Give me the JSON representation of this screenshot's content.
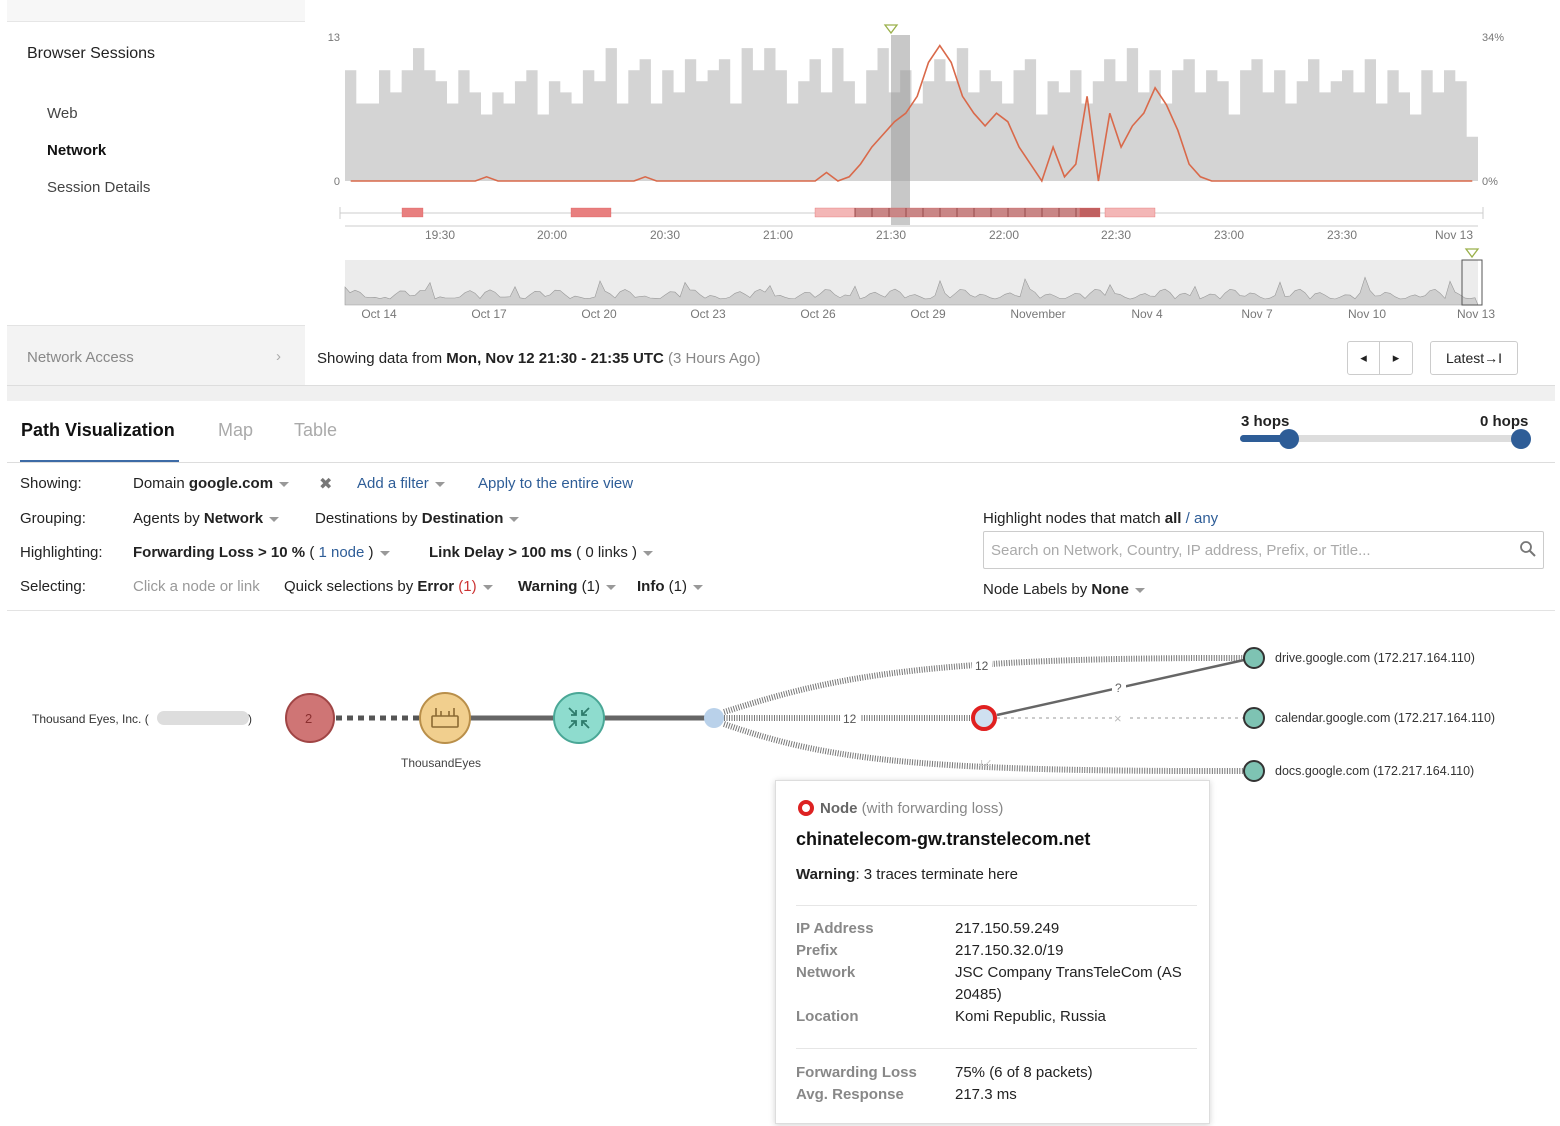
{
  "sidebar": {
    "section_title": "Browser Sessions",
    "items": [
      {
        "label": "Web",
        "active": false
      },
      {
        "label": "Network",
        "active": true
      },
      {
        "label": "Session Details",
        "active": false
      }
    ],
    "network_access": "Network Access"
  },
  "timeline": {
    "y_left": {
      "max": "13",
      "min": "0"
    },
    "y_right": {
      "max": "34%",
      "min": "0%"
    },
    "x_ticks": [
      "19:30",
      "20:00",
      "20:30",
      "21:00",
      "21:30",
      "22:00",
      "22:30",
      "23:00",
      "23:30",
      "Nov 13"
    ],
    "overview_ticks": [
      "Oct 14",
      "Oct 17",
      "Oct 20",
      "Oct 23",
      "Oct 26",
      "Oct 29",
      "November",
      "Nov 4",
      "Nov 7",
      "Nov 10",
      "Nov 13"
    ],
    "colors": {
      "sessions": "#d4d4d4",
      "loss": "#d9694a",
      "selection": "#9a9a9a"
    },
    "chart_data": {
      "type": "bar",
      "series": [
        {
          "name": "",
          "values": [
            10,
            7,
            7,
            10,
            8,
            10,
            12,
            10,
            9,
            7,
            10,
            8,
            6,
            8,
            7,
            9,
            10,
            6,
            9,
            8,
            7,
            10,
            9,
            12,
            7,
            10,
            11,
            7,
            10,
            8,
            11,
            9,
            10,
            11,
            7,
            12,
            10,
            12,
            10,
            7,
            9,
            11,
            8,
            12,
            9,
            7,
            10,
            12,
            8,
            10,
            7,
            9,
            11,
            9,
            12,
            8,
            10,
            9,
            7,
            10,
            11,
            6,
            9,
            8,
            10,
            7,
            9,
            11,
            9,
            12,
            8,
            10,
            7,
            10,
            11,
            8,
            10,
            9,
            6,
            10,
            11,
            8,
            10,
            7,
            9,
            11,
            8,
            9,
            10,
            8,
            11,
            7,
            10,
            8,
            6,
            10,
            8,
            10,
            9,
            4
          ]
        },
        {
          "name": "",
          "values": [
            0,
            0,
            0,
            0,
            0,
            0,
            0,
            0,
            0,
            0,
            0,
            0,
            1,
            0,
            0,
            0,
            0,
            0,
            0,
            0,
            0,
            0,
            0,
            0,
            0,
            0,
            1,
            0,
            0,
            0,
            0,
            0,
            0,
            0,
            0,
            0,
            0,
            0,
            0,
            0,
            0,
            0,
            2,
            0,
            1,
            4,
            8,
            11,
            14,
            16,
            20,
            28,
            32,
            28,
            20,
            16,
            13,
            16,
            14,
            8,
            4,
            0,
            8,
            1,
            4,
            20,
            0,
            16,
            8,
            13,
            16,
            22,
            18,
            12,
            4,
            1,
            0,
            0,
            0,
            0,
            0,
            0,
            0,
            0,
            0,
            0,
            0,
            0,
            0,
            0,
            0,
            0,
            0,
            0,
            0,
            0,
            0,
            0,
            0,
            0
          ]
        }
      ],
      "ylim": [
        0,
        13
      ],
      "y2lim": [
        0,
        34
      ]
    }
  },
  "showing": {
    "prefix": "Showing data from ",
    "range": "Mon, Nov 12 21:30 - 21:35 UTC",
    "ago": "(3 Hours Ago)"
  },
  "nav": {
    "prev": "◂",
    "next": "▸",
    "latest": "Latest→I"
  },
  "tabs": [
    "Path Visualization",
    "Map",
    "Table"
  ],
  "hops": {
    "left": "3 hops",
    "right": "0 hops"
  },
  "filters": {
    "showing_label": "Showing:",
    "domain_prefix": "Domain",
    "domain_value": "google.com",
    "add_filter": "Add a filter",
    "apply_all": "Apply to the entire view",
    "grouping_label": "Grouping:",
    "agents_prefix": "Agents by",
    "agents_value": "Network",
    "dest_prefix": "Destinations by",
    "dest_value": "Destination",
    "highlighting_label": "Highlighting:",
    "fwd_loss": "Forwarding Loss > 10 %",
    "fwd_count_open": "(",
    "fwd_count": "1 node",
    "fwd_count_close": ")",
    "link_delay": "Link Delay > 100 ms",
    "link_count": "( 0 links )",
    "selecting_label": "Selecting:",
    "click_hint": "Click a node or link",
    "quick_prefix": "Quick selections by",
    "error_label": "Error",
    "error_count": "(1)",
    "warning_label": "Warning",
    "warning_count": "(1)",
    "info_label": "Info",
    "info_count": "(1)",
    "match_prefix": "Highlight nodes that match",
    "match_all": "all",
    "match_sep": "/",
    "match_any": "any",
    "search_placeholder": "Search on Network, Country, IP address, Prefix, or Title...",
    "node_labels_prefix": "Node Labels by",
    "node_labels_value": "None"
  },
  "path": {
    "agent_label": "Thousand Eyes, Inc. (",
    "agent_label_close": ")",
    "agent_count": "2",
    "node_label": "ThousandEyes",
    "link_count_top": "12",
    "link_count_mid": "12",
    "link_count_bottom": "12",
    "unknown_marker": "?",
    "x_marker": "×",
    "destinations": [
      "drive.google.com (172.217.164.110)",
      "calendar.google.com (172.217.164.110)",
      "docs.google.com (172.217.164.110)"
    ]
  },
  "tooltip": {
    "type_label": "Node",
    "type_note": "(with forwarding loss)",
    "hostname": "chinatelecom-gw.transtelecom.net",
    "warning_label": "Warning",
    "warning_text": ": 3 traces terminate here",
    "ip_label": "IP Address",
    "ip_value": "217.150.59.249",
    "prefix_label": "Prefix",
    "prefix_value": "217.150.32.0/19",
    "network_label": "Network",
    "network_value": "JSC Company TransTeleCom (AS 20485)",
    "location_label": "Location",
    "location_value": "Komi Republic, Russia",
    "fwd_label": "Forwarding Loss",
    "fwd_value": "75% (6 of 8 packets)",
    "resp_label": "Avg. Response",
    "resp_value": "217.3 ms"
  }
}
